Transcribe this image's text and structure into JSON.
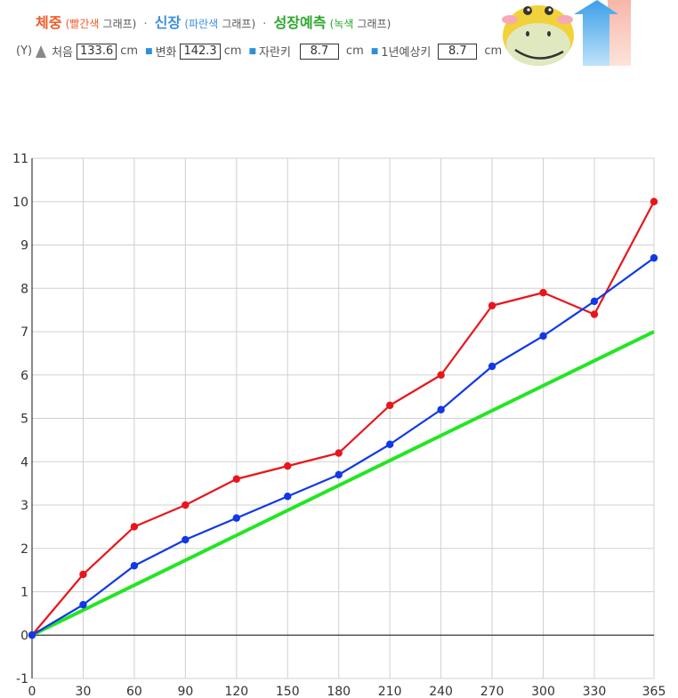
{
  "header": {
    "weight_label": "체중",
    "weight_color_note": "(빨간색",
    "graph_word_1": "그래프)",
    "height_label": "신장",
    "height_color_note": "(파란색",
    "graph_word_2": "그래프)",
    "growth_label": "성장예측",
    "growth_color_note": "(녹색",
    "graph_word_3": "그래프)",
    "separator": "·",
    "y_marker": "(Y)",
    "start_label": "처음",
    "start_value": "133.6",
    "change_label": "변화",
    "change_value": "142.3",
    "grown_label": "자란키",
    "grown_value": "8.7",
    "predict_label": "1년예상키",
    "predict_value": "8.7",
    "unit": "cm",
    "weight_color": "#f05a28",
    "height_color": "#3a8ee0",
    "growth_color": "#2aa82a"
  },
  "chart_data": {
    "type": "line",
    "x": [
      0,
      30,
      60,
      90,
      120,
      150,
      180,
      210,
      240,
      270,
      300,
      330,
      365
    ],
    "x_ticks": [
      "0",
      "30",
      "60",
      "90",
      "120",
      "150",
      "180",
      "210",
      "240",
      "270",
      "300",
      "330",
      "365"
    ],
    "y_ticks": [
      "-1",
      "0",
      "1",
      "2",
      "3",
      "4",
      "5",
      "6",
      "7",
      "8",
      "9",
      "10",
      "11"
    ],
    "xlim": [
      0,
      365
    ],
    "ylim": [
      -1,
      11
    ],
    "grid": true,
    "series": [
      {
        "values": [
          0,
          1.4,
          2.5,
          3.0,
          3.6,
          3.9,
          4.2,
          5.3,
          6.0,
          7.6,
          7.9,
          7.4,
          10.0
        ],
        "color": "#e8161b",
        "markers": true
      },
      {
        "values": [
          0,
          0.7,
          1.6,
          2.2,
          2.7,
          3.2,
          3.7,
          4.4,
          5.2,
          6.2,
          6.9,
          7.7,
          8.7
        ],
        "color": "#1038e8",
        "markers": true
      },
      {
        "x": [
          0,
          365
        ],
        "values": [
          0,
          7.0
        ],
        "color": "#22e622",
        "markers": false
      }
    ]
  }
}
